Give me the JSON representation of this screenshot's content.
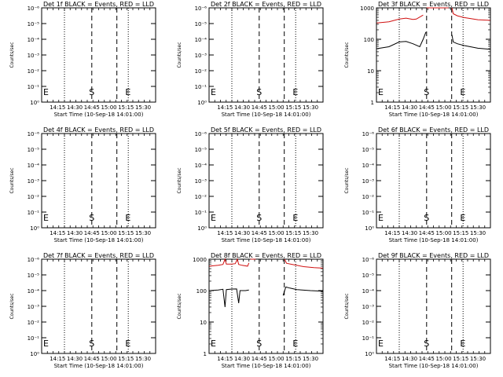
{
  "chart_data": [
    {
      "type": "line",
      "title": "Det 1f BLACK = Events, RED = LLD",
      "xlabel": "Start Time (10-Sep-18 14:01:00)",
      "ylabel": "Counts/sec",
      "yscale": "log",
      "ytick_labels": [
        "10⁰",
        "10⁻¹",
        "10⁻²",
        "10⁻³",
        "10⁻⁴",
        "10⁻⁵",
        "10⁻⁶"
      ],
      "xtick_labels": [
        "14:15",
        "14:30",
        "14:45",
        "15:00",
        "15:15",
        "15:30"
      ],
      "xlim": [
        "14:01",
        "15:41"
      ],
      "markers": [
        {
          "label": "E",
          "x": "14:01"
        },
        {
          "label": "S",
          "x": "14:45"
        },
        {
          "label": "E",
          "x": "15:13"
        }
      ],
      "dotted_lines": [
        "14:21",
        "15:17"
      ],
      "dashed_lines": [
        "14:45",
        "15:07"
      ],
      "series": []
    },
    {
      "type": "line",
      "title": "Det 2f BLACK = Events, RED = LLD",
      "xlabel": "Start Time (10-Sep-18 14:01:00)",
      "ylabel": "Counts/sec",
      "yscale": "log",
      "ytick_labels": [
        "10⁰",
        "10⁻¹",
        "10⁻²",
        "10⁻³",
        "10⁻⁴",
        "10⁻⁵",
        "10⁻⁶"
      ],
      "xtick_labels": [
        "14:15",
        "14:30",
        "14:45",
        "15:00",
        "15:15",
        "15:30"
      ],
      "xlim": [
        "14:01",
        "15:41"
      ],
      "markers": [
        {
          "label": "E",
          "x": "14:01"
        },
        {
          "label": "S",
          "x": "14:45"
        },
        {
          "label": "E",
          "x": "15:13"
        }
      ],
      "dotted_lines": [
        "14:21",
        "15:17"
      ],
      "dashed_lines": [
        "14:45",
        "15:07"
      ],
      "series": []
    },
    {
      "type": "line",
      "title": "Det 3f BLACK = Events, RED = LLD",
      "xlabel": "Start Time (10-Sep-18 14:01:00)",
      "ylabel": "Counts/sec",
      "yscale": "log",
      "ytick_labels": [
        "1000",
        "100",
        "10",
        "1"
      ],
      "xtick_labels": [
        "14:15",
        "14:30",
        "14:45",
        "15:00",
        "15:15",
        "15:30"
      ],
      "xlim": [
        "14:01",
        "15:41"
      ],
      "markers": [
        {
          "label": "E",
          "x": "14:01"
        },
        {
          "label": "S",
          "x": "14:45"
        },
        {
          "label": "E",
          "x": "15:13"
        }
      ],
      "dotted_lines": [
        "14:21",
        "15:17"
      ],
      "dashed_lines": [
        "14:45",
        "15:07"
      ],
      "series": [
        {
          "color": "#d01010",
          "segments": [
            [
              [
                14.02,
                330
              ],
              [
                14.2,
                360
              ],
              [
                14.35,
                440
              ],
              [
                14.45,
                470
              ],
              [
                14.55,
                430
              ],
              [
                14.6,
                440
              ],
              [
                14.7,
                590
              ]
            ],
            [
              [
                14.75,
                1000
              ],
              [
                14.9,
                1000
              ],
              [
                15.0,
                1000
              ],
              [
                15.07,
                1000
              ]
            ],
            [
              [
                15.12,
                1000
              ],
              [
                15.14,
                650
              ],
              [
                15.2,
                560
              ],
              [
                15.3,
                490
              ],
              [
                15.5,
                420
              ],
              [
                15.68,
                400
              ]
            ]
          ]
        },
        {
          "color": "#000000",
          "segments": [
            [
              [
                14.02,
                50
              ],
              [
                14.2,
                58
              ],
              [
                14.35,
                82
              ],
              [
                14.45,
                85
              ],
              [
                14.55,
                72
              ],
              [
                14.65,
                58
              ],
              [
                14.7,
                100
              ],
              [
                14.74,
                170
              ]
            ],
            [
              [
                15.12,
                140
              ],
              [
                15.14,
                82
              ],
              [
                15.2,
                72
              ],
              [
                15.3,
                63
              ],
              [
                15.5,
                52
              ],
              [
                15.68,
                48
              ]
            ]
          ]
        }
      ]
    },
    {
      "type": "line",
      "title": "Det 4f BLACK = Events, RED = LLD",
      "xlabel": "Start Time (10-Sep-18 14:01:00)",
      "ylabel": "Counts/sec",
      "yscale": "log",
      "ytick_labels": [
        "10⁰",
        "10⁻¹",
        "10⁻²",
        "10⁻³",
        "10⁻⁴",
        "10⁻⁵",
        "10⁻⁶"
      ],
      "xtick_labels": [
        "14:15",
        "14:30",
        "14:45",
        "15:00",
        "15:15",
        "15:30"
      ],
      "xlim": [
        "14:01",
        "15:41"
      ],
      "markers": [
        {
          "label": "E",
          "x": "14:01"
        },
        {
          "label": "S",
          "x": "14:45"
        },
        {
          "label": "E",
          "x": "15:13"
        }
      ],
      "dotted_lines": [
        "14:21",
        "15:17"
      ],
      "dashed_lines": [
        "14:45",
        "15:07"
      ],
      "series": []
    },
    {
      "type": "line",
      "title": "Det 5f BLACK = Events, RED = LLD",
      "xlabel": "Start Time (10-Sep-18 14:01:00)",
      "ylabel": "Counts/sec",
      "yscale": "log",
      "ytick_labels": [
        "10⁰",
        "10⁻¹",
        "10⁻²",
        "10⁻³",
        "10⁻⁴",
        "10⁻⁵",
        "10⁻⁶"
      ],
      "xtick_labels": [
        "14:15",
        "14:30",
        "14:45",
        "15:00",
        "15:15",
        "15:30"
      ],
      "xlim": [
        "14:01",
        "15:41"
      ],
      "markers": [
        {
          "label": "E",
          "x": "14:01"
        },
        {
          "label": "S",
          "x": "14:45"
        },
        {
          "label": "E",
          "x": "15:13"
        }
      ],
      "dotted_lines": [
        "14:21",
        "15:17"
      ],
      "dashed_lines": [
        "14:45",
        "15:07"
      ],
      "series": []
    },
    {
      "type": "line",
      "title": "Det 6f BLACK = Events, RED = LLD",
      "xlabel": "Start Time (10-Sep-18 14:01:00)",
      "ylabel": "Counts/sec",
      "yscale": "log",
      "ytick_labels": [
        "10⁰",
        "10⁻¹",
        "10⁻²",
        "10⁻³",
        "10⁻⁴",
        "10⁻⁵",
        "10⁻⁶"
      ],
      "xtick_labels": [
        "14:15",
        "14:30",
        "14:45",
        "15:00",
        "15:15",
        "15:30"
      ],
      "xlim": [
        "14:01",
        "15:41"
      ],
      "markers": [
        {
          "label": "E",
          "x": "14:01"
        },
        {
          "label": "S",
          "x": "14:45"
        },
        {
          "label": "E",
          "x": "15:13"
        }
      ],
      "dotted_lines": [
        "14:21",
        "15:17"
      ],
      "dashed_lines": [
        "14:45",
        "15:07"
      ],
      "series": []
    },
    {
      "type": "line",
      "title": "Det 7f BLACK = Events, RED = LLD",
      "xlabel": "Start Time (10-Sep-18 14:01:00)",
      "ylabel": "Counts/sec",
      "yscale": "log",
      "ytick_labels": [
        "10⁰",
        "10⁻¹",
        "10⁻²",
        "10⁻³",
        "10⁻⁴",
        "10⁻⁵",
        "10⁻⁶"
      ],
      "xtick_labels": [
        "14:15",
        "14:30",
        "14:45",
        "15:00",
        "15:15",
        "15:30"
      ],
      "xlim": [
        "14:01",
        "15:41"
      ],
      "markers": [
        {
          "label": "E",
          "x": "14:01"
        },
        {
          "label": "S",
          "x": "14:45"
        },
        {
          "label": "E",
          "x": "15:13"
        }
      ],
      "dotted_lines": [
        "14:21",
        "15:17"
      ],
      "dashed_lines": [
        "14:45",
        "15:07"
      ],
      "series": []
    },
    {
      "type": "line",
      "title": "Det 8f BLACK = Events, RED = LLD",
      "xlabel": "Start Time (10-Sep-18 14:01:00)",
      "ylabel": "Counts/sec",
      "yscale": "log",
      "ytick_labels": [
        "1000",
        "100",
        "10",
        "1"
      ],
      "xtick_labels": [
        "14:15",
        "14:30",
        "14:45",
        "15:00",
        "15:15",
        "15:30"
      ],
      "xlim": [
        "14:01",
        "15:41"
      ],
      "markers": [
        {
          "label": "E",
          "x": "14:01"
        },
        {
          "label": "S",
          "x": "14:45"
        },
        {
          "label": "E",
          "x": "15:13"
        }
      ],
      "dotted_lines": [
        "14:21",
        "15:17"
      ],
      "dashed_lines": [
        "14:45",
        "15:07"
      ],
      "series": [
        {
          "color": "#d01010",
          "segments": [
            [
              [
                14.02,
                600
              ],
              [
                14.15,
                640
              ],
              [
                14.22,
                680
              ],
              [
                14.25,
                1000
              ],
              [
                14.27,
                700
              ],
              [
                14.35,
                700
              ],
              [
                14.4,
                720
              ],
              [
                14.43,
                1000
              ],
              [
                14.45,
                680
              ],
              [
                14.5,
                640
              ],
              [
                14.58,
                600
              ],
              [
                14.6,
                760
              ]
            ],
            [
              [
                14.62,
                1000
              ],
              [
                14.7,
                1000
              ]
            ],
            [
              [
                15.12,
                1000
              ],
              [
                15.15,
                740
              ],
              [
                15.25,
                670
              ],
              [
                15.4,
                580
              ],
              [
                15.55,
                540
              ],
              [
                15.68,
                520
              ]
            ]
          ]
        },
        {
          "color": "#000000",
          "segments": [
            [
              [
                14.02,
                100
              ],
              [
                14.15,
                105
              ],
              [
                14.22,
                110
              ],
              [
                14.25,
                30
              ],
              [
                14.27,
                108
              ],
              [
                14.35,
                112
              ],
              [
                14.42,
                113
              ],
              [
                14.45,
                40
              ],
              [
                14.47,
                100
              ],
              [
                14.55,
                100
              ],
              [
                14.6,
                105
              ]
            ],
            [
              [
                15.1,
                70
              ],
              [
                15.14,
                130
              ],
              [
                15.2,
                120
              ],
              [
                15.3,
                108
              ],
              [
                15.5,
                100
              ],
              [
                15.68,
                96
              ]
            ]
          ]
        }
      ]
    },
    {
      "type": "line",
      "title": "Det 9f BLACK = Events, RED = LLD",
      "xlabel": "Start Time (10-Sep-18 14:01:00)",
      "ylabel": "Counts/sec",
      "yscale": "log",
      "ytick_labels": [
        "10⁰",
        "10⁻¹",
        "10⁻²",
        "10⁻³",
        "10⁻⁴",
        "10⁻⁵",
        "10⁻⁶"
      ],
      "xtick_labels": [
        "14:15",
        "14:30",
        "14:45",
        "15:00",
        "15:15",
        "15:30"
      ],
      "xlim": [
        "14:01",
        "15:41"
      ],
      "markers": [
        {
          "label": "E",
          "x": "14:01"
        },
        {
          "label": "S",
          "x": "14:45"
        },
        {
          "label": "E",
          "x": "15:13"
        }
      ],
      "dotted_lines": [
        "14:21",
        "15:17"
      ],
      "dashed_lines": [
        "14:45",
        "15:07"
      ],
      "series": []
    }
  ]
}
